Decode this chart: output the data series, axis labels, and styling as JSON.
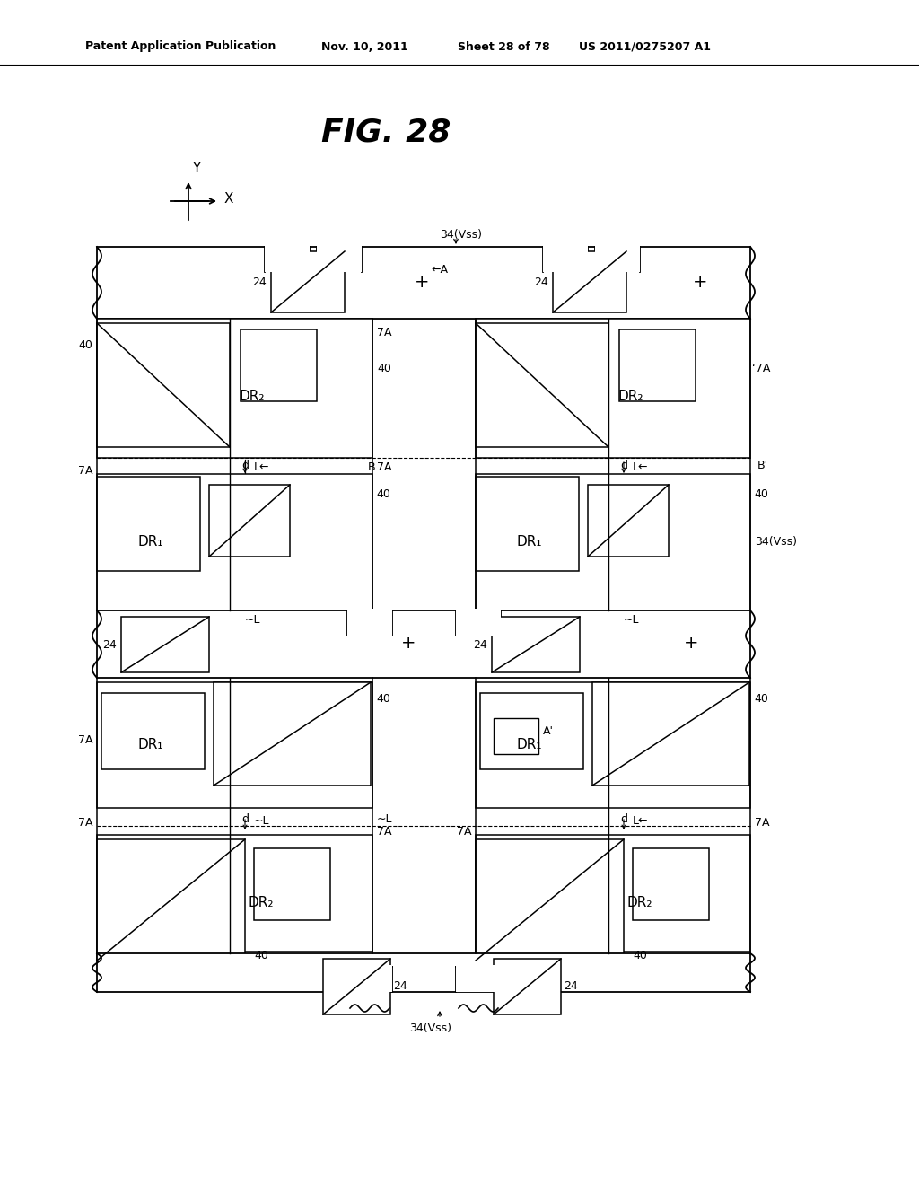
{
  "bg_color": "#ffffff",
  "header_text": "Patent Application Publication",
  "header_date": "Nov. 10, 2011",
  "header_sheet": "Sheet 28 of 78",
  "header_patent": "US 2011/0275207 A1",
  "fig_title": "FIG. 28",
  "fig_title_fontsize": 26
}
